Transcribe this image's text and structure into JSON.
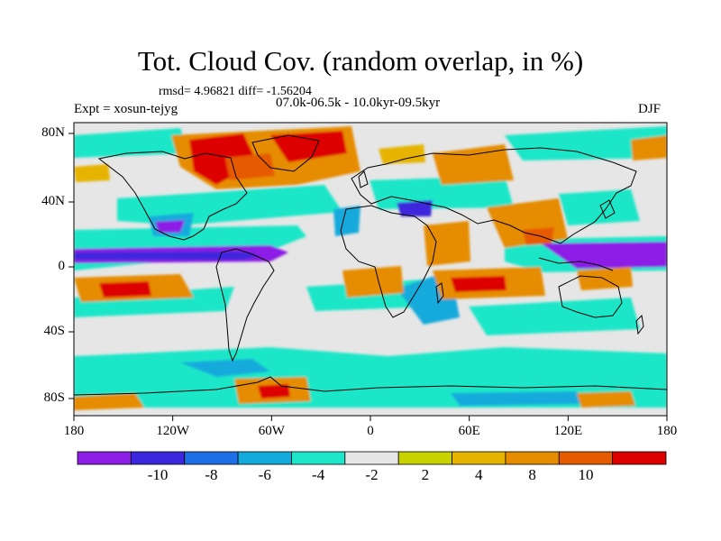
{
  "title": "Tot. Cloud Cov. (random overlap, in %)",
  "stats": "rmsd= 4.96821 diff= -1.56204",
  "expt": "Expt = xosun-tejyg",
  "period": "07.0k-06.5k - 10.0kyr-09.5kyr",
  "season": "DJF",
  "lat_ticks": [
    "80N",
    "40N",
    "0",
    "40S",
    "80S"
  ],
  "lon_ticks": [
    "180",
    "120W",
    "60W",
    "0",
    "60E",
    "120E",
    "180"
  ],
  "colorbar": {
    "colors": [
      "#8c1ee6",
      "#3c28dc",
      "#1e6ee6",
      "#14aadc",
      "#1ee6c8",
      "#e6e6e6",
      "#c8d200",
      "#e6b400",
      "#e68c00",
      "#e65a00",
      "#dc0000"
    ],
    "labels": [
      "-10",
      "-8",
      "-6",
      "-4",
      "-2",
      "2",
      "4",
      "8",
      "10"
    ]
  },
  "map_colors": {
    "background": "#e6e6e6",
    "coastline": "#000000"
  }
}
